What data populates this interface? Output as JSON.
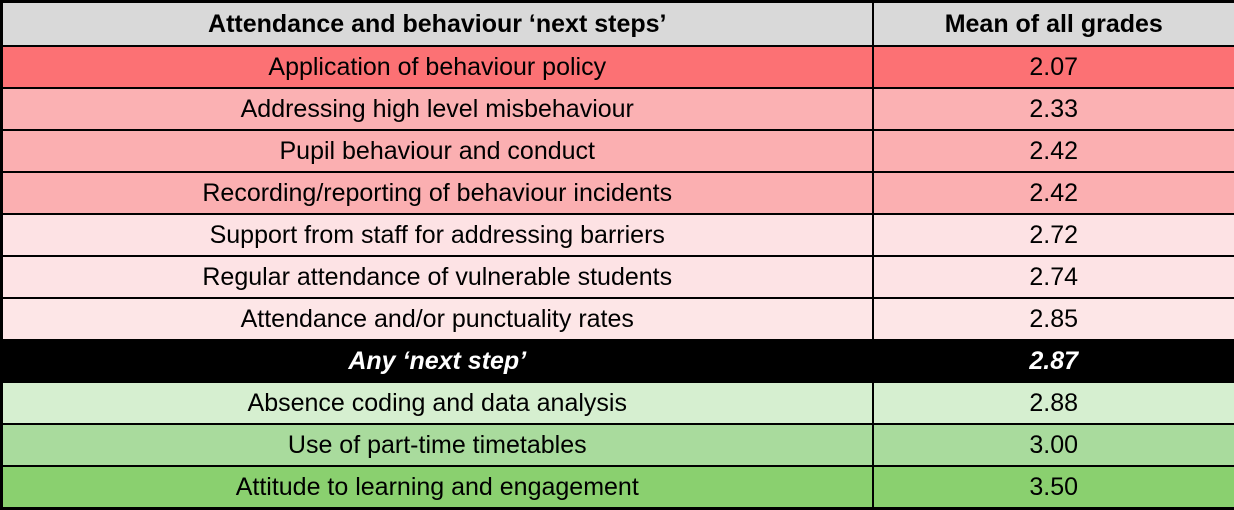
{
  "table": {
    "name": "attendance-behaviour-next-steps-grades",
    "header_bg": "#D9D9D9",
    "headers": {
      "label": "Attendance and behaviour ‘next steps’",
      "value": "Mean of all grades"
    },
    "rows": [
      {
        "label": "Application of behaviour policy",
        "value": "2.07",
        "bg": "#FC7174",
        "fg": "#000000",
        "emphasis": false
      },
      {
        "label": "Addressing high level misbehaviour",
        "value": "2.33",
        "bg": "#FBB1B3",
        "fg": "#000000",
        "emphasis": false
      },
      {
        "label": "Pupil behaviour and conduct",
        "value": "2.42",
        "bg": "#FBAFB1",
        "fg": "#000000",
        "emphasis": false
      },
      {
        "label": "Recording/reporting of behaviour incidents",
        "value": "2.42",
        "bg": "#FBAFB1",
        "fg": "#000000",
        "emphasis": false
      },
      {
        "label": "Support from staff for addressing barriers",
        "value": "2.72",
        "bg": "#FDE2E4",
        "fg": "#000000",
        "emphasis": false
      },
      {
        "label": "Regular attendance of vulnerable students",
        "value": "2.74",
        "bg": "#FDE3E5",
        "fg": "#000000",
        "emphasis": false
      },
      {
        "label": "Attendance and/or punctuality rates",
        "value": "2.85",
        "bg": "#FDE6E7",
        "fg": "#000000",
        "emphasis": false
      },
      {
        "label": "Any ‘next step’",
        "value": "2.87",
        "bg": "#000000",
        "fg": "#FFFFFF",
        "emphasis": true
      },
      {
        "label": "Absence coding and data analysis",
        "value": "2.88",
        "bg": "#D6EFD0",
        "fg": "#000000",
        "emphasis": false
      },
      {
        "label": "Use of part-time timetables",
        "value": "3.00",
        "bg": "#A9DB9D",
        "fg": "#000000",
        "emphasis": false
      },
      {
        "label": "Attitude to learning and engagement",
        "value": "3.50",
        "bg": "#8AD06F",
        "fg": "#000000",
        "emphasis": false
      }
    ]
  }
}
